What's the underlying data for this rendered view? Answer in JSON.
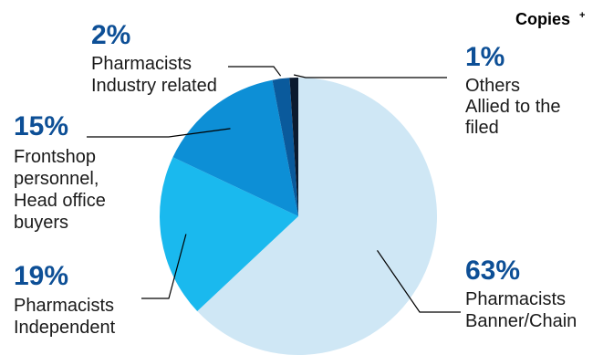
{
  "chart_data": {
    "type": "pie",
    "title": "Copies",
    "title_superscript": "+",
    "slices": [
      {
        "name": "Pharmacists Banner/Chain",
        "value": 63,
        "pct_label": "63%",
        "label_lines": [
          "Pharmacists",
          "Banner/Chain"
        ],
        "color": "#cfe7f5"
      },
      {
        "name": "Pharmacists Independent",
        "value": 19,
        "pct_label": "19%",
        "label_lines": [
          "Pharmacists",
          "Independent"
        ],
        "color": "#1ab9ee"
      },
      {
        "name": "Frontshop personnel, Head office buyers",
        "value": 15,
        "pct_label": "15%",
        "label_lines": [
          "Frontshop",
          "personnel,",
          "Head office",
          "buyers"
        ],
        "color": "#0d8fd6"
      },
      {
        "name": "Pharmacists Industry related",
        "value": 2,
        "pct_label": "2%",
        "label_lines": [
          "Pharmacists",
          "Industry related"
        ],
        "color": "#0a5a9c"
      },
      {
        "name": "Others Allied to the filed",
        "value": 1,
        "pct_label": "1%",
        "label_lines": [
          "Others",
          "Allied to the",
          "filed"
        ],
        "color": "#0b1a2e"
      }
    ],
    "pct_color": "#0d4f96"
  }
}
